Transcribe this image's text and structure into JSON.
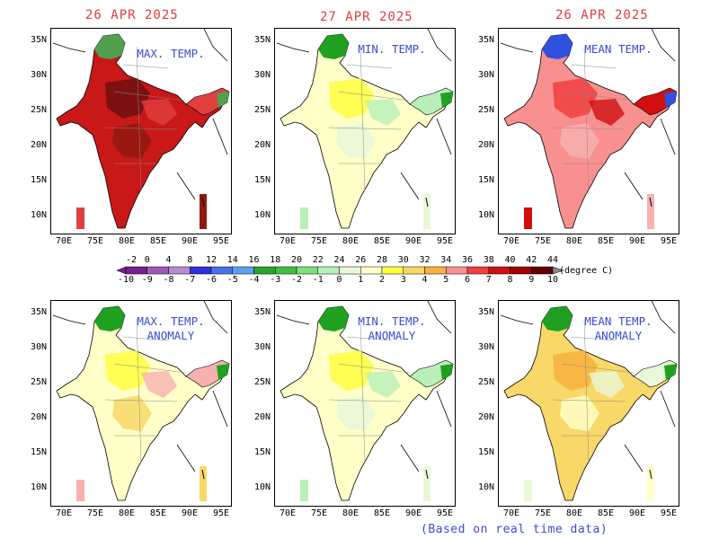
{
  "panels": [
    {
      "date": "26 APR 2025",
      "label_line1": "MAX. TEMP.",
      "label_line2": "",
      "theme": "max"
    },
    {
      "date": "27 APR 2025",
      "label_line1": "MIN. TEMP.",
      "label_line2": "",
      "theme": "min"
    },
    {
      "date": "26 APR 2025",
      "label_line1": "MEAN TEMP.",
      "label_line2": "",
      "theme": "mean"
    },
    {
      "date": "",
      "label_line1": "MAX. TEMP.",
      "label_line2": "ANOMALY",
      "theme": "maxanom"
    },
    {
      "date": "",
      "label_line1": "MIN. TEMP.",
      "label_line2": "ANOMALY",
      "theme": "minanom"
    },
    {
      "date": "",
      "label_line1": "MEAN TEMP.",
      "label_line2": "ANOMALY",
      "theme": "meananom"
    }
  ],
  "axis": {
    "lat_labels": [
      "35N",
      "30N",
      "25N",
      "20N",
      "15N",
      "10N"
    ],
    "lon_labels": [
      "70E",
      "75E",
      "80E",
      "85E",
      "90E",
      "95E"
    ]
  },
  "colorbar": {
    "top_labels": [
      "-2",
      "0",
      "4",
      "8",
      "12",
      "14",
      "16",
      "18",
      "20",
      "22",
      "24",
      "26",
      "28",
      "30",
      "32",
      "34",
      "36",
      "38",
      "40",
      "42",
      "44"
    ],
    "bottom_labels": [
      "-10",
      "-9",
      "-8",
      "-7",
      "-6",
      "-5",
      "-4",
      "-3",
      "-2",
      "-1",
      "0",
      "1",
      "2",
      "3",
      "4",
      "5",
      "6",
      "7",
      "8",
      "9",
      "10"
    ],
    "colors": [
      "#7a1f8f",
      "#9b5bb5",
      "#b88bd0",
      "#2f2fe0",
      "#4a72e8",
      "#5ea0ee",
      "#2aa32a",
      "#40c040",
      "#7be07b",
      "#b8f0b8",
      "#e8f8d8",
      "#ffffc8",
      "#ffff40",
      "#f8d868",
      "#f8b040",
      "#f89090",
      "#f04040",
      "#d01010",
      "#a00000",
      "#600000"
    ],
    "unit": "(degree C)"
  },
  "footnote": "(Based on real time data)"
}
